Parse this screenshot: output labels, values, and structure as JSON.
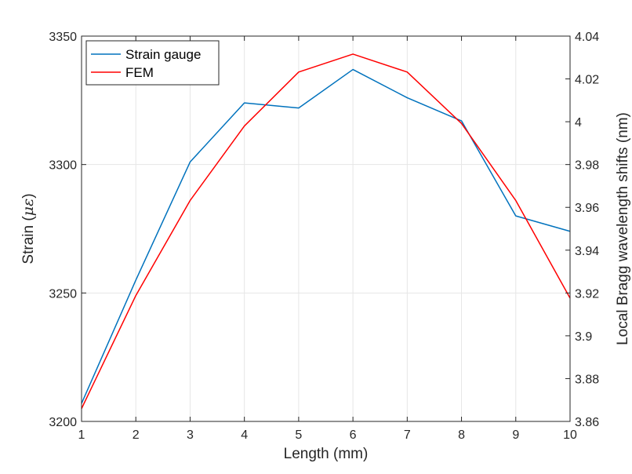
{
  "chart_data": {
    "type": "line",
    "title": "",
    "xlabel": "Length (mm)",
    "ylabel_left_prefix": "Strain (",
    "ylabel_left_unit": "με",
    "ylabel_left_suffix": ")",
    "ylabel_right": "Local Bragg wavelength shifts (nm)",
    "xlim": [
      1,
      10
    ],
    "ylim_left": [
      3200,
      3350
    ],
    "ylim_right": [
      3.86,
      4.04
    ],
    "x_ticks": [
      "1",
      "2",
      "3",
      "4",
      "5",
      "6",
      "7",
      "8",
      "9",
      "10"
    ],
    "y_left_ticks": [
      "3200",
      "3250",
      "3300",
      "3350"
    ],
    "y_right_ticks": [
      "3.86",
      "3.88",
      "3.9",
      "3.92",
      "3.94",
      "3.96",
      "3.98",
      "4",
      "4.02",
      "4.04"
    ],
    "grid": true,
    "legend_position": "top-left",
    "series": [
      {
        "name": "Strain gauge",
        "color": "#0072BD",
        "axis": "left",
        "x": [
          1,
          2,
          3,
          4,
          5,
          6,
          7,
          8,
          9,
          10
        ],
        "y": [
          3207,
          3255,
          3301,
          3324,
          3322,
          3337,
          3326,
          3317,
          3280,
          3274
        ]
      },
      {
        "name": "FEM",
        "color": "#FF0000",
        "axis": "left",
        "x": [
          1,
          2,
          3,
          4,
          5,
          6,
          7,
          8,
          9,
          10
        ],
        "y": [
          3205,
          3249,
          3286,
          3315,
          3336,
          3343,
          3336,
          3316,
          3286,
          3248
        ]
      }
    ]
  }
}
